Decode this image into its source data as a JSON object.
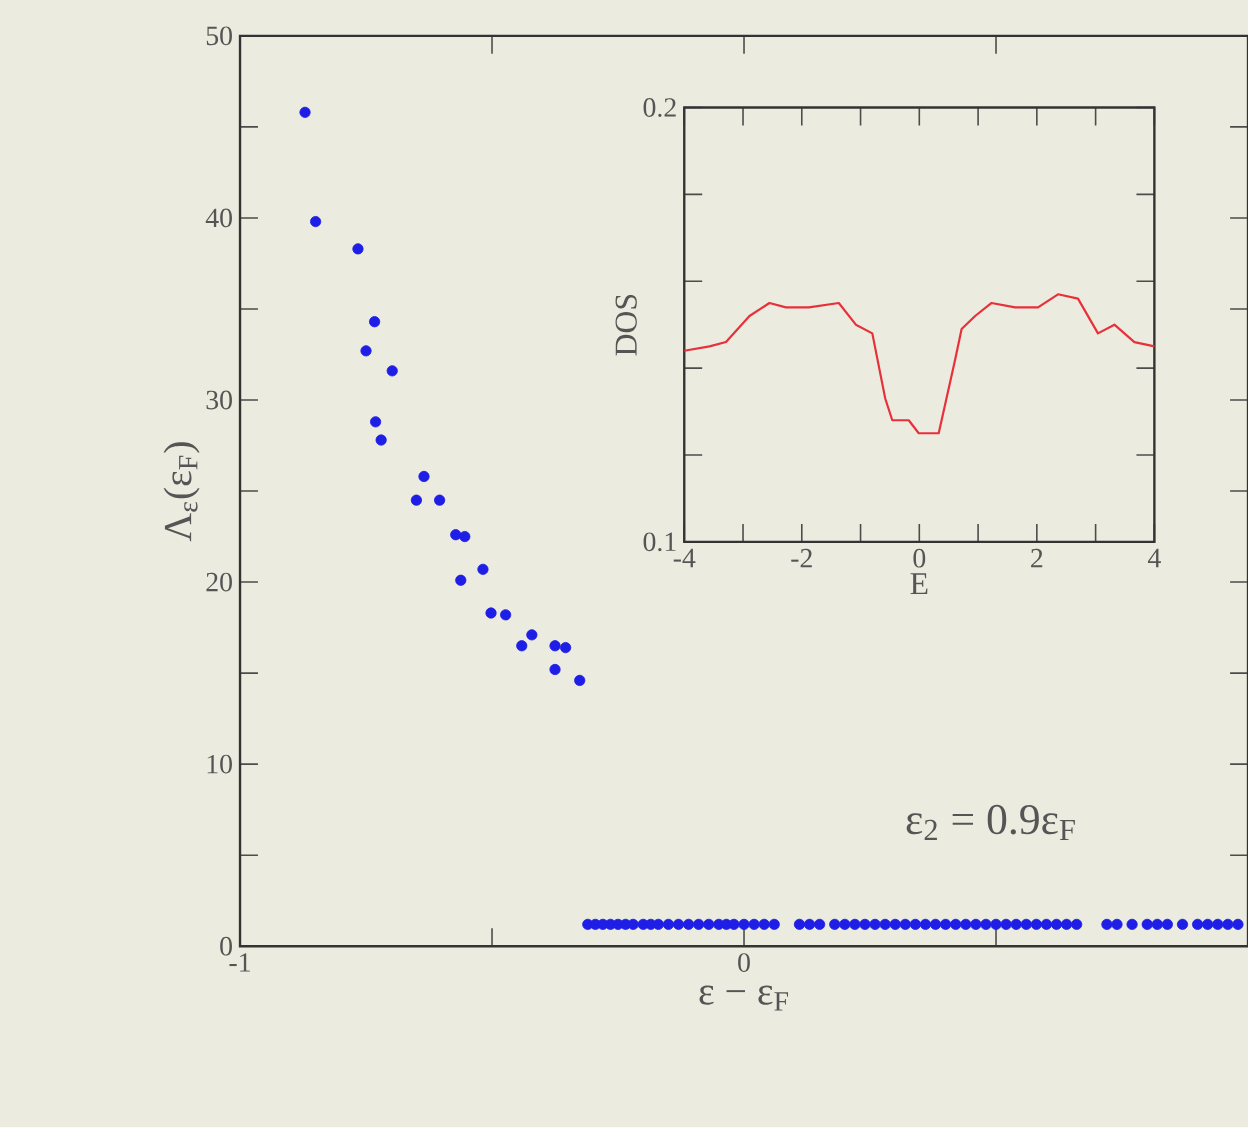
{
  "chart_data": [
    {
      "type": "scatter",
      "xlabel": "ε − ε$_{F}$",
      "ylabel": "Λ$_{ε}$(ε$_{F}$)",
      "annotations": [
        "ε$_{2}$ = 0.9ε$_{F}$"
      ],
      "color": "#1e1ee6",
      "marker": "circle",
      "x": [
        -0.871,
        -0.85,
        -0.766,
        -0.733,
        -0.75,
        -0.698,
        -0.731,
        -0.72,
        -0.635,
        -0.65,
        -0.604,
        -0.572,
        -0.554,
        -0.562,
        -0.518,
        -0.502,
        -0.473,
        -0.441,
        -0.421,
        -0.375,
        -0.354,
        -0.375,
        -0.326,
        -0.31,
        -0.295,
        -0.28,
        -0.265,
        -0.25,
        -0.235,
        -0.22,
        -0.2,
        -0.185,
        -0.17,
        -0.15,
        -0.13,
        -0.11,
        -0.09,
        -0.07,
        -0.05,
        -0.035,
        -0.02,
        0.0,
        0.02,
        0.04,
        0.06,
        0.11,
        0.13,
        0.15,
        0.18,
        0.2,
        0.22,
        0.24,
        0.26,
        0.28,
        0.3,
        0.32,
        0.34,
        0.36,
        0.38,
        0.4,
        0.42,
        0.44,
        0.46,
        0.48,
        0.5,
        0.52,
        0.54,
        0.56,
        0.58,
        0.6,
        0.62,
        0.64,
        0.66,
        0.72,
        0.74,
        0.77,
        0.8,
        0.82,
        0.84,
        0.87,
        0.9,
        0.92,
        0.94,
        0.96,
        0.98
      ],
      "values": [
        45.8,
        39.8,
        38.3,
        34.3,
        32.7,
        31.6,
        28.8,
        27.8,
        25.8,
        24.5,
        24.5,
        22.6,
        22.5,
        20.1,
        20.7,
        18.3,
        18.2,
        16.5,
        17.1,
        16.5,
        16.4,
        15.2,
        14.6,
        1.2,
        1.2,
        1.2,
        1.2,
        1.2,
        1.2,
        1.2,
        1.2,
        1.2,
        1.2,
        1.2,
        1.2,
        1.2,
        1.2,
        1.2,
        1.2,
        1.2,
        1.2,
        1.2,
        1.2,
        1.2,
        1.2,
        1.2,
        1.2,
        1.2,
        1.2,
        1.2,
        1.2,
        1.2,
        1.2,
        1.2,
        1.2,
        1.2,
        1.2,
        1.2,
        1.2,
        1.2,
        1.2,
        1.2,
        1.2,
        1.2,
        1.2,
        1.2,
        1.2,
        1.2,
        1.2,
        1.2,
        1.2,
        1.2,
        1.2,
        1.2,
        1.2,
        1.2,
        1.2,
        1.2,
        1.2,
        1.2,
        1.2,
        1.2,
        1.2,
        1.2,
        1.2
      ],
      "xlim": [
        -1,
        1
      ],
      "xticks": [
        -1,
        {
          "value": -0.5,
          "label": null
        },
        0,
        {
          "value": 0.5,
          "label": null
        }
      ],
      "ylim": [
        0,
        50
      ],
      "yticks": [
        0,
        {
          "value": 5,
          "label": null
        },
        10,
        {
          "value": 15,
          "label": null
        },
        20,
        {
          "value": 25,
          "label": null
        },
        30,
        {
          "value": 35,
          "label": null
        },
        40,
        {
          "value": 45,
          "label": null
        },
        50
      ]
    },
    {
      "type": "line",
      "xlabel": "E",
      "ylabel": "DOS",
      "color": "#e8303a",
      "line_style": "solid",
      "x": [
        -4,
        -3.57,
        -3.29,
        -2.89,
        -2.55,
        -2.27,
        -1.88,
        -1.37,
        -1.08,
        -0.8,
        -0.58,
        -0.46,
        -0.18,
        -0.01,
        0.33,
        0.61,
        0.72,
        0.95,
        1.23,
        1.63,
        2.02,
        2.36,
        2.7,
        3.04,
        3.32,
        3.66,
        4.0
      ],
      "values": [
        0.144,
        0.145,
        0.146,
        0.152,
        0.155,
        0.154,
        0.154,
        0.155,
        0.15,
        0.148,
        0.133,
        0.128,
        0.128,
        0.125,
        0.125,
        0.142,
        0.149,
        0.152,
        0.155,
        0.154,
        0.154,
        0.157,
        0.156,
        0.148,
        0.15,
        0.146,
        0.145
      ],
      "xlim": [
        -4,
        4
      ],
      "xticks": [
        -4,
        {
          "value": -3,
          "label": null
        },
        -2,
        {
          "value": -1,
          "label": null
        },
        0,
        {
          "value": 1,
          "label": null
        },
        2,
        {
          "value": 3,
          "label": null
        },
        4
      ],
      "ylim": [
        0.1,
        0.2
      ],
      "yticks": [
        0.1,
        {
          "value": 0.12,
          "label": null
        },
        {
          "value": 0.14,
          "label": null
        },
        {
          "value": 0.16,
          "label": null
        },
        {
          "value": 0.18,
          "label": null
        },
        0.2
      ]
    }
  ]
}
